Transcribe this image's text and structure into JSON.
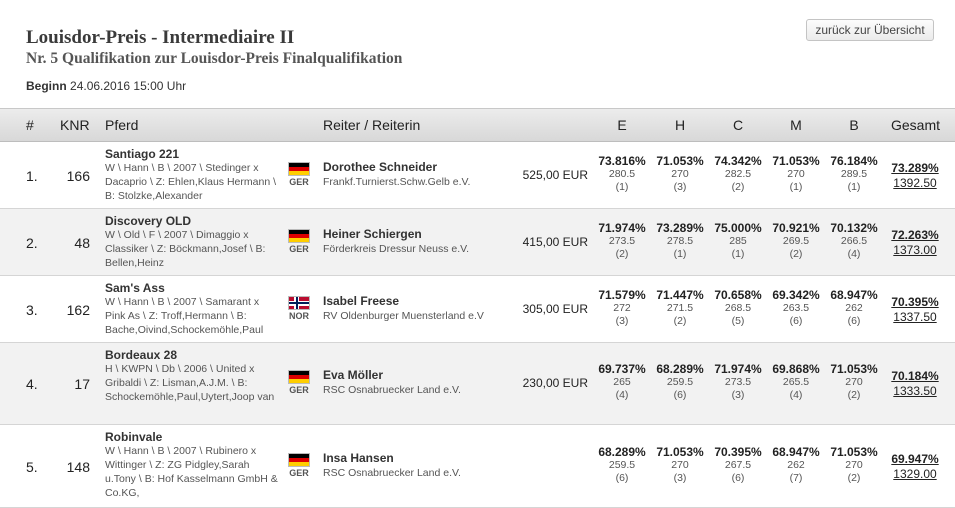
{
  "header": {
    "title": "Louisdor-Preis - Intermediaire II",
    "subtitle": "Nr. 5 Qualifikation zur Louisdor-Preis Finalqualifikation",
    "start_label": "Beginn",
    "start_value": "24.06.2016 15:00 Uhr",
    "back_label": "zurück zur Übersicht"
  },
  "columns": {
    "rank": "#",
    "knr": "KNR",
    "horse": "Pferd",
    "rider": "Reiter / Reiterin",
    "e": "E",
    "h": "H",
    "c": "C",
    "m": "M",
    "b": "B",
    "total": "Gesamt"
  },
  "rows": [
    {
      "rank": "1.",
      "knr": "166",
      "horse_name": "Santiago 221",
      "horse_info": "W \\ Hann \\ B \\ 2007 \\ Stedinger x Dacaprio \\ Z: Ehlen,Klaus Hermann \\ B: Stolzke,Alexander",
      "nation": "GER",
      "rider_name": "Dorothee Schneider",
      "rider_club": "Frankf.Turnierst.Schw.Gelb e.V.",
      "prize": "525,00 EUR",
      "scores": [
        {
          "pct": "73.816%",
          "pts": "280.5",
          "place": "(1)"
        },
        {
          "pct": "71.053%",
          "pts": "270",
          "place": "(3)"
        },
        {
          "pct": "74.342%",
          "pts": "282.5",
          "place": "(2)"
        },
        {
          "pct": "71.053%",
          "pts": "270",
          "place": "(1)"
        },
        {
          "pct": "76.184%",
          "pts": "289.5",
          "place": "(1)"
        }
      ],
      "total_pct": "73.289%",
      "total_pts": "1392.50"
    },
    {
      "rank": "2.",
      "knr": "48",
      "horse_name": "Discovery OLD",
      "horse_info": "W \\ Old \\ F \\ 2007 \\ Dimaggio x Classiker \\ Z: Böckmann,Josef \\ B: Bellen,Heinz",
      "nation": "GER",
      "rider_name": "Heiner Schiergen",
      "rider_club": "Förderkreis Dressur Neuss e.V.",
      "prize": "415,00 EUR",
      "scores": [
        {
          "pct": "71.974%",
          "pts": "273.5",
          "place": "(2)"
        },
        {
          "pct": "73.289%",
          "pts": "278.5",
          "place": "(1)"
        },
        {
          "pct": "75.000%",
          "pts": "285",
          "place": "(1)"
        },
        {
          "pct": "70.921%",
          "pts": "269.5",
          "place": "(2)"
        },
        {
          "pct": "70.132%",
          "pts": "266.5",
          "place": "(4)"
        }
      ],
      "total_pct": "72.263%",
      "total_pts": "1373.00"
    },
    {
      "rank": "3.",
      "knr": "162",
      "horse_name": "Sam's Ass",
      "horse_info": "W \\ Hann \\ B \\ 2007 \\ Samarant x Pink As \\ Z: Troff,Hermann \\ B: Bache,Oivind,Schockemöhle,Paul",
      "nation": "NOR",
      "rider_name": "Isabel Freese",
      "rider_club": "RV Oldenburger Muensterland e.V",
      "prize": "305,00 EUR",
      "scores": [
        {
          "pct": "71.579%",
          "pts": "272",
          "place": "(3)"
        },
        {
          "pct": "71.447%",
          "pts": "271.5",
          "place": "(2)"
        },
        {
          "pct": "70.658%",
          "pts": "268.5",
          "place": "(5)"
        },
        {
          "pct": "69.342%",
          "pts": "263.5",
          "place": "(6)"
        },
        {
          "pct": "68.947%",
          "pts": "262",
          "place": "(6)"
        }
      ],
      "total_pct": "70.395%",
      "total_pts": "1337.50"
    },
    {
      "rank": "4.",
      "knr": "17",
      "horse_name": "Bordeaux 28",
      "horse_info": "H \\ KWPN \\ Db \\ 2006 \\ United x Gribaldi \\ Z: Lisman,A.J.M. \\ B: Schockemöhle,Paul,Uytert,Joop van",
      "nation": "GER",
      "rider_name": "Eva Möller",
      "rider_club": "RSC Osnabruecker Land e.V.",
      "prize": "230,00 EUR",
      "scores": [
        {
          "pct": "69.737%",
          "pts": "265",
          "place": "(4)"
        },
        {
          "pct": "68.289%",
          "pts": "259.5",
          "place": "(6)"
        },
        {
          "pct": "71.974%",
          "pts": "273.5",
          "place": "(3)"
        },
        {
          "pct": "69.868%",
          "pts": "265.5",
          "place": "(4)"
        },
        {
          "pct": "71.053%",
          "pts": "270",
          "place": "(2)"
        }
      ],
      "total_pct": "70.184%",
      "total_pts": "1333.50"
    },
    {
      "rank": "5.",
      "knr": "148",
      "horse_name": "Robinvale",
      "horse_info": "W \\ Hann \\ B \\ 2007 \\ Rubinero x Wittinger \\ Z: ZG Pidgley,Sarah u.Tony \\ B: Hof Kasselmann GmbH & Co.KG,",
      "nation": "GER",
      "rider_name": "Insa Hansen",
      "rider_club": "RSC Osnabruecker Land e.V.",
      "prize": "",
      "scores": [
        {
          "pct": "68.289%",
          "pts": "259.5",
          "place": "(6)"
        },
        {
          "pct": "71.053%",
          "pts": "270",
          "place": "(3)"
        },
        {
          "pct": "70.395%",
          "pts": "267.5",
          "place": "(6)"
        },
        {
          "pct": "68.947%",
          "pts": "262",
          "place": "(7)"
        },
        {
          "pct": "71.053%",
          "pts": "270",
          "place": "(2)"
        }
      ],
      "total_pct": "69.947%",
      "total_pts": "1329.00"
    }
  ]
}
